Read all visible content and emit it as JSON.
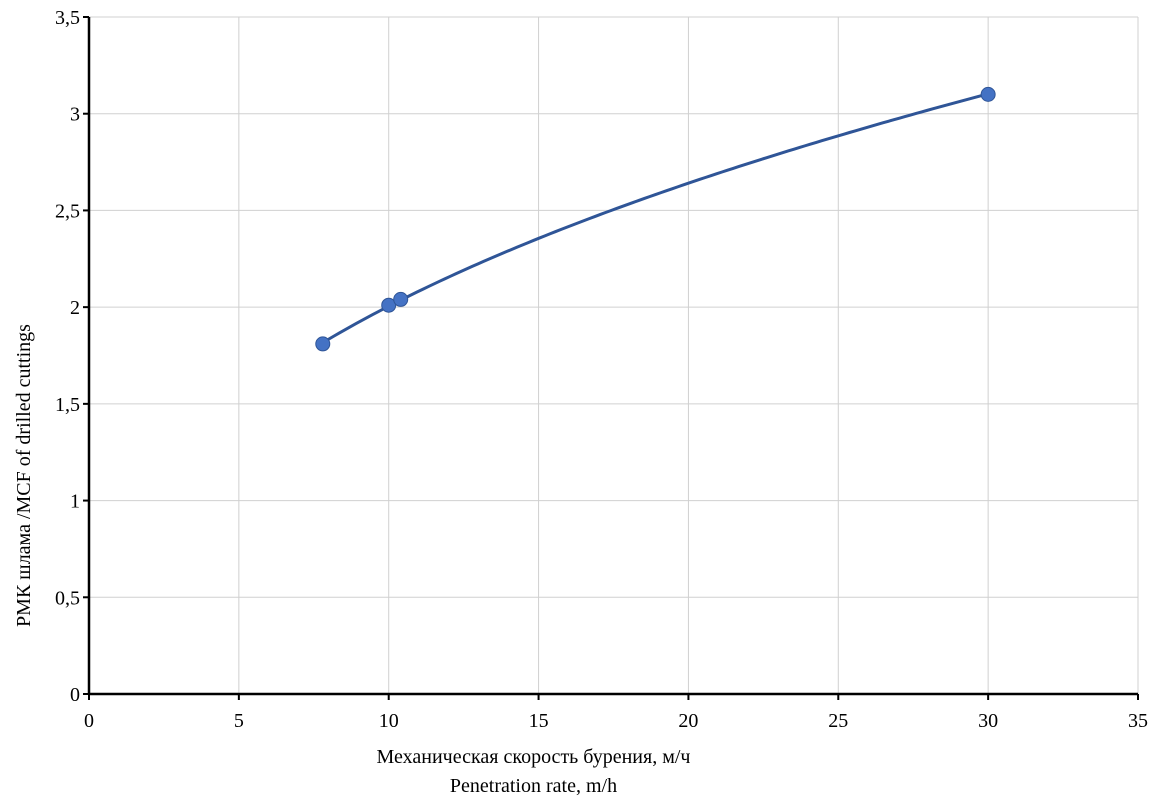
{
  "chart_data": {
    "type": "scatter",
    "title": "",
    "xlabel_lines": [
      "Механическая скорость бурения, м/ч",
      "Penetration rate, m/h"
    ],
    "ylabel": "РМК шлама /MCF of drilled cuttings",
    "xlim": [
      0,
      35
    ],
    "ylim": [
      0,
      3.5
    ],
    "xticks": [
      0,
      5,
      10,
      15,
      20,
      25,
      30,
      35
    ],
    "yticks": [
      0,
      0.5,
      1,
      1.5,
      2,
      2.5,
      3,
      3.5
    ],
    "xtick_labels": [
      "0",
      "5",
      "10",
      "15",
      "20",
      "25",
      "30",
      "35"
    ],
    "ytick_labels": [
      "0",
      "0,5",
      "1",
      "1,5",
      "2",
      "2,5",
      "3",
      "3,5"
    ],
    "grid": true,
    "legend": "none",
    "series": [
      {
        "points": [
          [
            7.8,
            1.81
          ],
          [
            10.0,
            2.01
          ],
          [
            10.4,
            2.04
          ],
          [
            30.0,
            3.1
          ]
        ],
        "trend": "power",
        "color": "#4472c4",
        "line_color": "#2f5597"
      }
    ]
  }
}
